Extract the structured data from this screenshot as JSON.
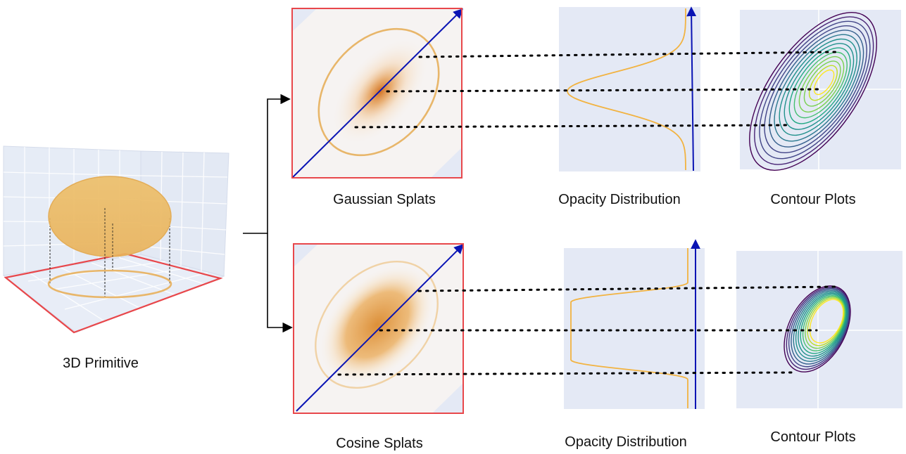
{
  "labels": {
    "primitive": "3D Primitive",
    "gaussian_splats": "Gaussian Splats",
    "cosine_splats": "Cosine Splats",
    "opacity_top": "Opacity Distribution",
    "opacity_bottom": "Opacity Distribution",
    "contour_top": "Contour Plots",
    "contour_bottom": "Contour Plots"
  },
  "colors": {
    "splat_frame": "#e8474b",
    "axis_arrow": "#0a14b4",
    "ellipse_outline": "#e8b66a",
    "opacity_curve": "#f2b341",
    "plot_background": "#e4e9f5",
    "primitive_fill": "#eebf6a"
  }
}
